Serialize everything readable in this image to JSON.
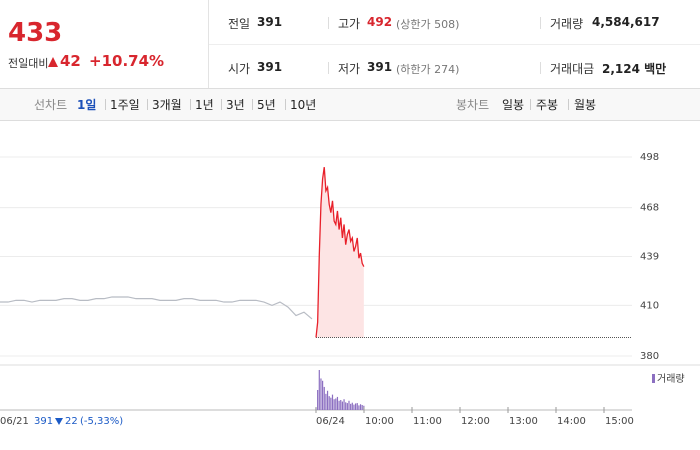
{
  "header": {
    "price": "433",
    "change_label": "전일대비",
    "change": "42",
    "rate": "+10.74%",
    "stats": [
      [
        {
          "label": "전일",
          "value": "391"
        },
        {
          "label": "고가",
          "value": "492",
          "note": "(상한가 508)"
        },
        {
          "label": "거래량",
          "value": "4,584,617"
        }
      ],
      [
        {
          "label": "시가",
          "value": "391"
        },
        {
          "label": "저가",
          "value": "391",
          "note": "(하한가 274)"
        },
        {
          "label": "거래대금",
          "value": "2,124 백만"
        }
      ]
    ]
  },
  "tabs": {
    "line_label": "선차트",
    "line_items": [
      "1일",
      "1주일",
      "3개월",
      "1년",
      "3년",
      "5년",
      "10년"
    ],
    "candle_label": "봉차트",
    "candle_items": [
      "일봉",
      "주봉",
      "월봉"
    ]
  },
  "chart_data": {
    "type": "line",
    "ylim": [
      380,
      498
    ],
    "yticks": [
      498,
      468,
      439,
      410,
      380
    ],
    "grid": true,
    "color": "#e8202a",
    "prev_color": "#b8bcc4",
    "prev_close": 391,
    "prev_values": [
      412,
      412,
      413,
      413,
      412,
      413,
      413,
      413,
      414,
      414,
      413,
      413,
      414,
      414,
      415,
      415,
      415,
      414,
      414,
      414,
      413,
      413,
      413,
      414,
      414,
      413,
      413,
      413,
      412,
      412,
      413,
      413,
      413,
      412,
      410,
      412,
      409,
      404,
      406,
      402
    ],
    "values": [
      391,
      400,
      440,
      470,
      485,
      492,
      478,
      480,
      470,
      465,
      472,
      460,
      458,
      466,
      455,
      462,
      450,
      458,
      446,
      452,
      455,
      448,
      450,
      442,
      445,
      450,
      438,
      441,
      435,
      433
    ],
    "volume_label": "거래량",
    "volume_color": "#8c6fc1",
    "volume_values": [
      30000,
      260000,
      520000,
      410000,
      380000,
      300000,
      210000,
      250000,
      180000,
      160000,
      200000,
      140000,
      150000,
      170000,
      120000,
      130000,
      110000,
      140000,
      100000,
      90000,
      120000,
      80000,
      95000,
      70000,
      85000,
      90000,
      60000,
      75000,
      65000,
      55000
    ],
    "xticks": [
      "06/21",
      "06/24",
      "10:00",
      "11:00",
      "12:00",
      "13:00",
      "14:00",
      "15:00"
    ],
    "prev_summary": {
      "close": "391",
      "change": "22",
      "rate": "(-5,33%)"
    }
  }
}
